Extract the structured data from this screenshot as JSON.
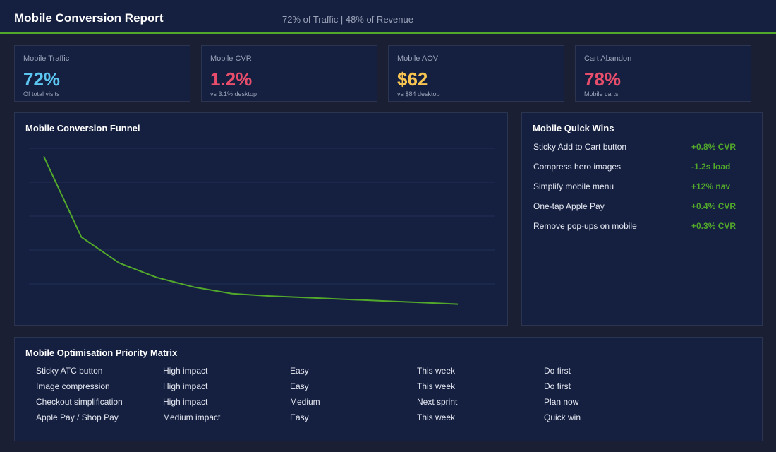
{
  "header": {
    "title": "Mobile Conversion Report",
    "subtitle": "72% of Traffic | 48% of Revenue"
  },
  "kpis": [
    {
      "label": "Mobile Traffic",
      "value": "72%",
      "sub": "Of total visits",
      "color": "#5cc6f0"
    },
    {
      "label": "Mobile CVR",
      "value": "1.2%",
      "sub": "vs 3.1% desktop",
      "color": "#e84e6c"
    },
    {
      "label": "Mobile AOV",
      "value": "$62",
      "sub": "vs $84 desktop",
      "color": "#f7c451"
    },
    {
      "label": "Cart Abandon",
      "value": "78%",
      "sub": "Mobile carts",
      "color": "#e84e6c"
    }
  ],
  "funnel": {
    "title": "Mobile Conversion Funnel",
    "line_color": "#52a82a",
    "grid_color": "#233055"
  },
  "chart_data": {
    "type": "line",
    "title": "Mobile Conversion Funnel",
    "xlabel": "",
    "ylabel": "",
    "x": [
      1,
      2,
      3,
      4,
      5,
      6,
      7,
      8,
      9,
      10,
      11,
      12
    ],
    "series": [
      {
        "values": [
          100,
          50,
          34,
          25,
          19,
          15,
          13.5,
          12.5,
          11.5,
          10.5,
          9.5,
          8.5
        ]
      }
    ],
    "ylim": [
      0,
      105
    ],
    "grid": true,
    "legend": "none"
  },
  "quick_wins": {
    "title": "Mobile Quick Wins",
    "items": [
      {
        "name": "Sticky Add to Cart button",
        "value": "+0.8% CVR"
      },
      {
        "name": "Compress hero images",
        "value": "-1.2s load"
      },
      {
        "name": "Simplify mobile menu",
        "value": "+12% nav"
      },
      {
        "name": "One-tap Apple Pay",
        "value": "+0.4% CVR"
      },
      {
        "name": "Remove pop-ups on mobile",
        "value": "+0.3% CVR"
      }
    ]
  },
  "matrix": {
    "title": "Mobile Optimisation Priority Matrix",
    "rows": [
      [
        "Sticky ATC button",
        "High impact",
        "Easy",
        "This week",
        "Do first"
      ],
      [
        "Image compression",
        "High impact",
        "Easy",
        "This week",
        "Do first"
      ],
      [
        "Checkout simplification",
        "High impact",
        "Medium",
        "Next sprint",
        "Plan now"
      ],
      [
        "Apple Pay / Shop Pay",
        "Medium impact",
        "Easy",
        "This week",
        "Quick win"
      ]
    ]
  }
}
